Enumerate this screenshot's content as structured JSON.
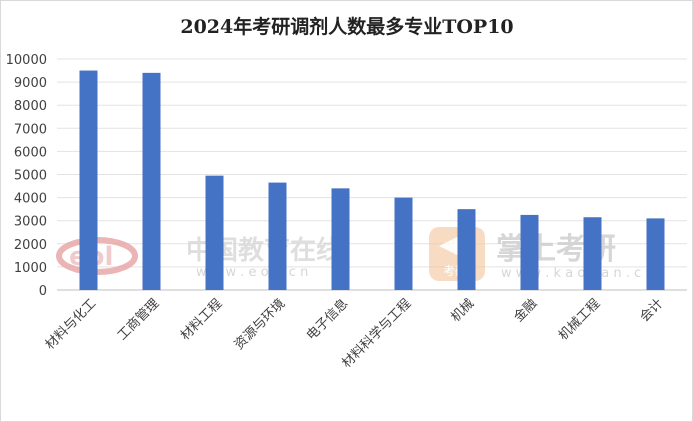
{
  "chart_data": {
    "type": "bar",
    "title": "2024年考研调剂人数最多专业TOP10",
    "categories": [
      "材料与化工",
      "工商管理",
      "材料工程",
      "资源与环境",
      "电子信息",
      "材料科学与工程",
      "机械",
      "金融",
      "机械工程",
      "会计"
    ],
    "values": [
      9500,
      9400,
      4950,
      4650,
      4400,
      4000,
      3500,
      3250,
      3150,
      3100
    ],
    "ylim": [
      0,
      10000
    ],
    "yticks": [
      0,
      1000,
      2000,
      3000,
      4000,
      5000,
      6000,
      7000,
      8000,
      9000,
      10000
    ],
    "grid": true,
    "legend": "none",
    "bar_color": "#4472C4"
  },
  "watermarks": {
    "eol": {
      "logo_text": "eol",
      "name": "中国教育在线",
      "url": "w w w . e o l . c n",
      "color": "#e8a9a9"
    },
    "kaoyan": {
      "name": "掌上考研",
      "badge": "考研",
      "url": "w w w . k a o y a n . c n",
      "color": "#f4c7a1",
      "text_color": "#c9c9c9"
    }
  }
}
